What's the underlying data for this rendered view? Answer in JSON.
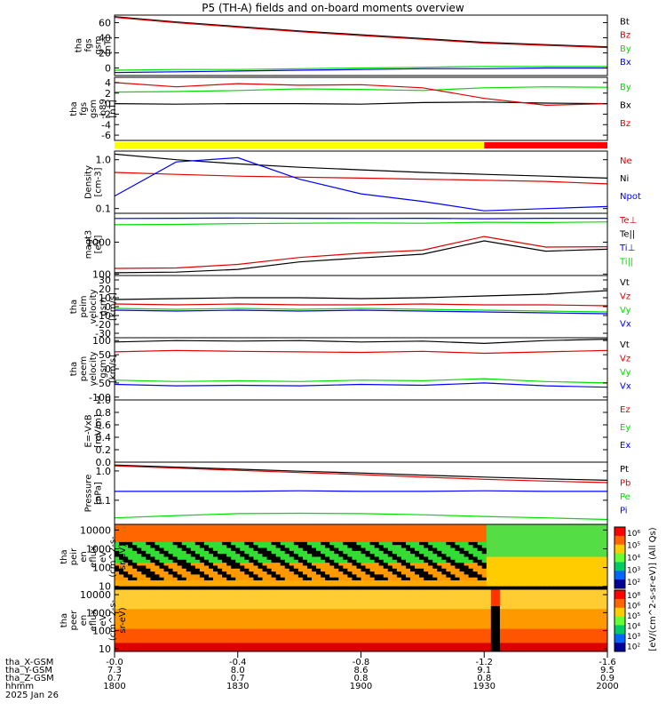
{
  "title": "P5 (TH-A) fields and on-board moments overview",
  "colors": {
    "black": "#000000",
    "red": "#e00000",
    "green": "#00dd00",
    "blue": "#0000ff",
    "yellow": "#ffff00",
    "bar_red": "#ff0000",
    "magenta": "#990000"
  },
  "chart_data": [
    {
      "type": "line",
      "panel": "fgs_total",
      "ylabel": [
        "tha",
        "fgs",
        "gsm",
        "[nT]"
      ],
      "ylim": [
        -10,
        70
      ],
      "ticks": [
        0,
        20,
        40,
        60
      ],
      "x": [
        1800,
        1815,
        1830,
        1845,
        1900,
        1915,
        1930,
        1945,
        2000
      ],
      "series": [
        {
          "name": "Bt",
          "color": "black",
          "values": [
            68,
            61,
            55,
            49,
            44,
            39,
            34,
            31,
            28
          ]
        },
        {
          "name": "Bz",
          "color": "red",
          "values": [
            67,
            60,
            54,
            48,
            43,
            38,
            33,
            30,
            27
          ]
        },
        {
          "name": "By",
          "color": "green",
          "values": [
            -3,
            -2,
            -2,
            -1,
            0,
            1,
            2,
            2,
            2
          ]
        },
        {
          "name": "Bx",
          "color": "blue",
          "values": [
            -6,
            -5,
            -4,
            -3,
            -2,
            -1,
            -1,
            0,
            0
          ]
        }
      ]
    },
    {
      "type": "line",
      "panel": "fgs_detrended",
      "ylabel": [
        "tha",
        "fgs",
        "gsm",
        "-b89",
        "[nT]"
      ],
      "ylim": [
        -7,
        5
      ],
      "ticks": [
        -6,
        -4,
        -2,
        0,
        2,
        4
      ],
      "x": [
        1800,
        1815,
        1830,
        1845,
        1900,
        1915,
        1930,
        1945,
        2000
      ],
      "series": [
        {
          "name": "By",
          "color": "green",
          "values": [
            2.2,
            2.3,
            2.5,
            2.8,
            2.7,
            2.5,
            3.0,
            3.2,
            3.1
          ]
        },
        {
          "name": "Bx",
          "color": "black",
          "values": [
            0,
            -0.1,
            0,
            0,
            -0.1,
            0.2,
            0.3,
            0.1,
            0
          ]
        },
        {
          "name": "Bz",
          "color": "red",
          "values": [
            4.0,
            3.2,
            3.8,
            3.5,
            3.6,
            3.0,
            1.0,
            -0.3,
            0
          ]
        }
      ]
    },
    {
      "type": "line",
      "panel": "density",
      "ylabel": [
        "Density",
        "[cm-3]"
      ],
      "log": true,
      "ylim": [
        0.08,
        1.5
      ],
      "tick_labels": [
        "1.0",
        "0.1"
      ],
      "x": [
        1800,
        1815,
        1830,
        1845,
        1900,
        1915,
        1930,
        1945,
        2000
      ],
      "series": [
        {
          "name": "Ne",
          "color": "red",
          "values": [
            0.55,
            0.5,
            0.46,
            0.44,
            0.42,
            0.4,
            0.38,
            0.36,
            0.32
          ]
        },
        {
          "name": "Ni",
          "color": "black",
          "values": [
            1.3,
            1.0,
            0.82,
            0.7,
            0.62,
            0.55,
            0.5,
            0.46,
            0.42
          ]
        },
        {
          "name": "Npot",
          "color": "blue",
          "values": [
            0.18,
            0.9,
            1.1,
            0.4,
            0.2,
            0.14,
            0.09,
            0.1,
            0.11
          ]
        }
      ]
    },
    {
      "type": "line",
      "panel": "temperature",
      "ylabel": [
        "magt3",
        "[eV]"
      ],
      "log": true,
      "ylim": [
        90,
        8000
      ],
      "tick_labels": [
        "1000",
        "100"
      ],
      "x": [
        1800,
        1815,
        1830,
        1845,
        1900,
        1915,
        1930,
        1945,
        2000
      ],
      "series": [
        {
          "name": "Te⊥",
          "color": "red",
          "values": [
            150,
            155,
            200,
            330,
            450,
            560,
            1500,
            700,
            720
          ]
        },
        {
          "name": "Te||",
          "color": "black",
          "values": [
            110,
            115,
            140,
            240,
            320,
            420,
            1100,
            520,
            600
          ]
        },
        {
          "name": "Ti⊥",
          "color": "blue",
          "values": [
            5500,
            5600,
            5700,
            5600,
            5500,
            5600,
            5400,
            5600,
            5600
          ]
        },
        {
          "name": "Ti||",
          "color": "green",
          "values": [
            3500,
            3600,
            3800,
            3900,
            4000,
            3900,
            4200,
            4100,
            4300
          ]
        }
      ]
    },
    {
      "type": "line",
      "panel": "peim_velocity",
      "ylabel": [
        "tha",
        "peim",
        "velocity",
        "gsm",
        "[km/s]"
      ],
      "ylim": [
        -35,
        35
      ],
      "ticks": [
        -30,
        -20,
        -10,
        0,
        10,
        20,
        30
      ],
      "x": [
        1800,
        1815,
        1830,
        1845,
        1900,
        1915,
        1930,
        1945,
        2000
      ],
      "series": [
        {
          "name": "Vt",
          "color": "black",
          "values": [
            8,
            9,
            10,
            10,
            9,
            10,
            12,
            14,
            18
          ]
        },
        {
          "name": "Vz",
          "color": "red",
          "values": [
            3,
            2,
            3,
            2,
            2,
            3,
            2,
            2,
            1
          ]
        },
        {
          "name": "Vy",
          "color": "green",
          "values": [
            -2,
            -3,
            -2,
            -3,
            -2,
            -3,
            -4,
            -5,
            -6
          ]
        },
        {
          "name": "Vx",
          "color": "blue",
          "values": [
            -4,
            -5,
            -4,
            -5,
            -4,
            -5,
            -6,
            -7,
            -8
          ]
        }
      ]
    },
    {
      "type": "line",
      "panel": "peem_velocity",
      "ylabel": [
        "tha",
        "peem",
        "velocity",
        "gsm",
        "[km/s]"
      ],
      "ylim": [
        -110,
        110
      ],
      "ticks": [
        -100,
        -50,
        0,
        50,
        100
      ],
      "x": [
        1800,
        1815,
        1830,
        1845,
        1900,
        1915,
        1930,
        1945,
        2000
      ],
      "series": [
        {
          "name": "Vt",
          "color": "black",
          "values": [
            95,
            100,
            98,
            100,
            95,
            98,
            90,
            100,
            105
          ]
        },
        {
          "name": "Vz",
          "color": "red",
          "values": [
            60,
            65,
            62,
            60,
            58,
            62,
            55,
            60,
            65
          ]
        },
        {
          "name": "Vy",
          "color": "green",
          "values": [
            -40,
            -45,
            -42,
            -45,
            -40,
            -42,
            -35,
            -45,
            -50
          ]
        },
        {
          "name": "Vx",
          "color": "blue",
          "values": [
            -55,
            -60,
            -58,
            -60,
            -55,
            -58,
            -50,
            -60,
            -65
          ]
        }
      ]
    },
    {
      "type": "line",
      "panel": "efield",
      "ylabel": [
        "E=-VxB",
        "[mV/m]"
      ],
      "ylim": [
        0,
        1
      ],
      "tick_labels": [
        "1.0",
        "0.8",
        "0.6",
        "0.4",
        "0.2",
        "0.0"
      ],
      "series": [
        {
          "name": "Ez",
          "color": "red",
          "values": []
        },
        {
          "name": "Ey",
          "color": "green",
          "values": []
        },
        {
          "name": "Ex",
          "color": "blue",
          "values": []
        }
      ]
    },
    {
      "type": "line",
      "panel": "pressure",
      "ylabel": [
        "Pressure",
        "[nPa]"
      ],
      "log": true,
      "ylim": [
        0.015,
        2
      ],
      "tick_labels": [
        "1.0",
        "0.1"
      ],
      "x": [
        1800,
        1815,
        1830,
        1845,
        1900,
        1915,
        1930,
        1945,
        2000
      ],
      "series": [
        {
          "name": "Pt",
          "color": "black",
          "values": [
            1.6,
            1.35,
            1.15,
            0.98,
            0.85,
            0.72,
            0.62,
            0.54,
            0.48
          ]
        },
        {
          "name": "Pb",
          "color": "red",
          "values": [
            1.5,
            1.25,
            1.05,
            0.88,
            0.75,
            0.62,
            0.52,
            0.45,
            0.4
          ]
        },
        {
          "name": "Pe",
          "color": "green",
          "values": [
            0.025,
            0.03,
            0.035,
            0.036,
            0.035,
            0.032,
            0.028,
            0.025,
            0.022
          ]
        },
        {
          "name": "Pi",
          "color": "blue",
          "values": [
            0.2,
            0.2,
            0.2,
            0.21,
            0.2,
            0.2,
            0.21,
            0.2,
            0.2
          ]
        }
      ]
    },
    {
      "type": "heatmap",
      "panel": "peir_spectrogram",
      "ylabel": [
        "tha",
        "peir",
        "en",
        "eflux",
        "eV",
        "(cm^2-s-",
        "sr-eV)"
      ],
      "log": true,
      "ylim": [
        7,
        20000
      ],
      "tick_labels": [
        "10000",
        "1000",
        "100",
        "10"
      ]
    },
    {
      "type": "heatmap",
      "panel": "peer_spectrogram",
      "ylabel": [
        "tha",
        "peer",
        "en",
        "eflux",
        "eV",
        "(cm^2-s-",
        "sr-eV)"
      ],
      "log": true,
      "ylim": [
        7,
        20000
      ],
      "tick_labels": [
        "10000",
        "1000",
        "100",
        "10"
      ]
    }
  ],
  "colorbar": {
    "label": "[eV/(cm^2-s-sr-eV)] (All Qs)",
    "top_ticks": [
      "10⁶",
      "10⁵",
      "10⁴",
      "10³",
      "10²"
    ],
    "bottom_ticks": [
      "10⁸",
      "10⁶",
      "10⁵",
      "10⁴",
      "10³",
      "10²"
    ]
  },
  "axis": {
    "rows": [
      {
        "label": "tha_X-GSM",
        "values": [
          "-0.0",
          "-0.4",
          "-0.8",
          "-1.2",
          "-1.6"
        ]
      },
      {
        "label": "tha_Y-GSM",
        "values": [
          "7.3",
          "8.0",
          "8.6",
          "9.1",
          "9.5"
        ]
      },
      {
        "label": "tha_Z-GSM",
        "values": [
          "0.7",
          "0.7",
          "0.8",
          "0.8",
          "0.9"
        ]
      },
      {
        "label": "hhmm",
        "values": [
          "1800",
          "1830",
          "1900",
          "1930",
          "2000"
        ]
      }
    ],
    "date": "2025 Jan 26"
  }
}
